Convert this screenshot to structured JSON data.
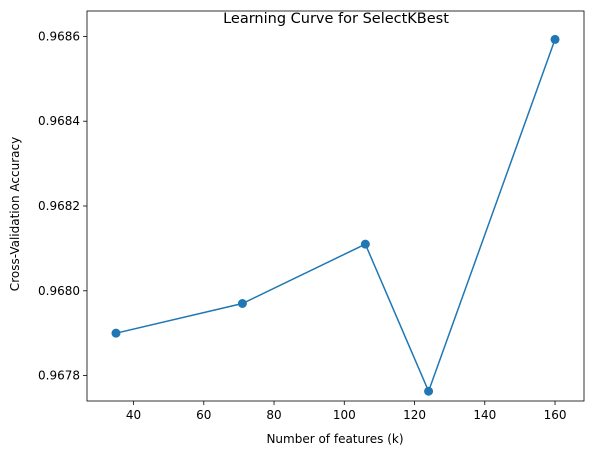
{
  "chart_data": {
    "type": "line",
    "title": "Learning Curve for SelectKBest",
    "xlabel": "Number of features (k)",
    "ylabel": "Cross-Validation Accuracy",
    "xlim": [
      26.75,
      168.25
    ],
    "ylim": [
      0.96774,
      0.96866
    ],
    "xticks": [
      40,
      60,
      80,
      100,
      120,
      140,
      160
    ],
    "xtick_labels": [
      "40",
      "60",
      "80",
      "100",
      "120",
      "140",
      "160"
    ],
    "yticks": [
      0.9678,
      0.968,
      0.9682,
      0.9684,
      0.9686
    ],
    "ytick_labels": [
      "0.9678",
      "0.9680",
      "0.9682",
      "0.9684",
      "0.9686"
    ],
    "grid": false,
    "series": [
      {
        "x": [
          35,
          71,
          106,
          124,
          160
        ],
        "y": [
          0.9679,
          0.96797,
          0.96811,
          0.967763,
          0.968593
        ],
        "color": "#1f77b4",
        "marker": "circle"
      }
    ]
  }
}
